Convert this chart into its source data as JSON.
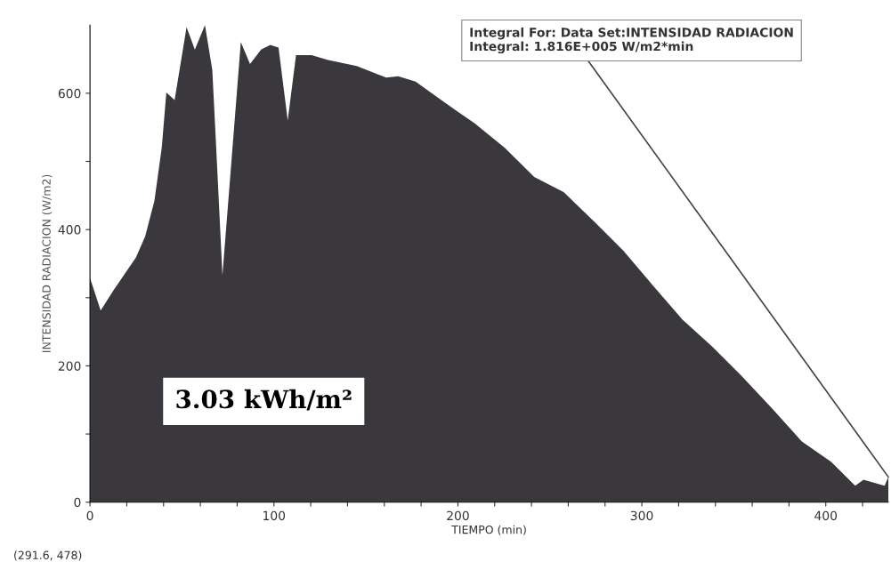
{
  "chart_data": {
    "type": "area",
    "xlabel": "TIEMPO (min)",
    "ylabel": "INTENSIDAD RADIACION (W/m2)",
    "x": [
      0,
      5.8,
      12.6,
      25,
      30,
      35,
      39,
      41.5,
      46,
      52.5,
      57,
      62.5,
      66.5,
      69,
      72,
      78.5,
      82,
      87,
      93,
      98,
      102.5,
      107.5,
      112,
      120.5,
      129,
      145,
      161,
      167.5,
      177,
      193,
      209,
      225.5,
      241.5,
      257.5,
      274,
      290,
      306,
      322,
      338,
      354,
      371,
      387,
      403,
      416,
      420.5,
      432,
      434
    ],
    "series": [
      {
        "color": "#3a383c",
        "values": [
          329,
          281,
          310,
          359,
          390,
          442,
          520,
          601,
          590,
          697,
          664,
          700,
          634,
          499,
          333,
          555,
          675,
          643,
          664,
          671,
          667,
          560,
          656,
          656,
          649,
          640,
          623,
          625,
          617,
          586,
          556,
          520,
          477,
          455,
          412,
          369,
          318,
          268,
          229,
          186,
          137,
          89,
          59,
          24,
          33,
          24,
          37
        ]
      }
    ],
    "xlim": [
      0,
      434
    ],
    "ylim": [
      0,
      700
    ],
    "xticks": [
      0,
      {
        "value": 20,
        "label": null
      },
      {
        "value": 40,
        "label": null
      },
      {
        "value": 60,
        "label": null
      },
      {
        "value": 80,
        "label": null
      },
      100,
      {
        "value": 120,
        "label": null
      },
      {
        "value": 140,
        "label": null
      },
      {
        "value": 160,
        "label": null
      },
      {
        "value": 180,
        "label": null
      },
      200,
      {
        "value": 220,
        "label": null
      },
      {
        "value": 240,
        "label": null
      },
      {
        "value": 260,
        "label": null
      },
      {
        "value": 280,
        "label": null
      },
      300,
      {
        "value": 320,
        "label": null
      },
      {
        "value": 340,
        "label": null
      },
      {
        "value": 360,
        "label": null
      },
      {
        "value": 380,
        "label": null
      },
      400,
      {
        "value": 420,
        "label": null
      }
    ],
    "yticks": [
      0,
      {
        "value": 100,
        "label": null
      },
      200,
      {
        "value": 300,
        "label": null
      },
      400,
      {
        "value": 500,
        "label": null
      },
      600
    ],
    "grid": false,
    "annotations": [
      {
        "text": "Integral For: Data Set:INTENSIDAD RADIACION\nIntegral: 1.816E+005 W/m2*min",
        "x": 434,
        "y": 37
      },
      "3.03 kWh/m²",
      "(291.6, 478)"
    ]
  }
}
